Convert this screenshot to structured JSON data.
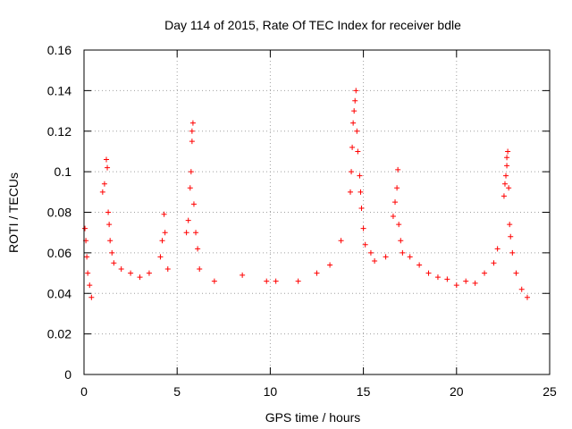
{
  "chart_data": {
    "type": "scatter",
    "title": "Day 114 of 2015, Rate Of TEC Index for receiver bdle",
    "xlabel": "GPS time / hours",
    "ylabel": "ROTI / TECUs",
    "xlim": [
      0,
      25
    ],
    "ylim": [
      0,
      0.16
    ],
    "xticks": [
      0,
      5,
      10,
      15,
      20,
      25
    ],
    "xtick_labels": [
      "0",
      "5",
      "10",
      "15",
      "20",
      "25"
    ],
    "yticks": [
      0,
      0.02,
      0.04,
      0.06,
      0.08,
      0.1,
      0.12,
      0.14,
      0.16
    ],
    "ytick_labels": [
      "0",
      "0.02",
      "0.04",
      "0.06",
      "0.08",
      "0.1",
      "0.12",
      "0.14",
      "0.16"
    ],
    "grid": true,
    "marker": "+",
    "color": "#ff0000",
    "series": [
      {
        "name": "ROTI",
        "points": [
          [
            0.05,
            0.072
          ],
          [
            0.1,
            0.066
          ],
          [
            0.15,
            0.058
          ],
          [
            0.2,
            0.05
          ],
          [
            0.3,
            0.044
          ],
          [
            0.4,
            0.038
          ],
          [
            1.2,
            0.106
          ],
          [
            1.25,
            0.102
          ],
          [
            1.1,
            0.094
          ],
          [
            1.0,
            0.09
          ],
          [
            1.3,
            0.08
          ],
          [
            1.35,
            0.074
          ],
          [
            1.4,
            0.066
          ],
          [
            1.5,
            0.06
          ],
          [
            1.6,
            0.055
          ],
          [
            2.0,
            0.052
          ],
          [
            2.5,
            0.05
          ],
          [
            3.0,
            0.048
          ],
          [
            3.5,
            0.05
          ],
          [
            4.1,
            0.058
          ],
          [
            4.2,
            0.066
          ],
          [
            4.3,
            0.079
          ],
          [
            4.35,
            0.07
          ],
          [
            4.5,
            0.052
          ],
          [
            5.5,
            0.07
          ],
          [
            5.6,
            0.076
          ],
          [
            5.7,
            0.092
          ],
          [
            5.75,
            0.1
          ],
          [
            5.8,
            0.115
          ],
          [
            5.8,
            0.12
          ],
          [
            5.85,
            0.124
          ],
          [
            5.9,
            0.084
          ],
          [
            6.0,
            0.07
          ],
          [
            6.1,
            0.062
          ],
          [
            6.2,
            0.052
          ],
          [
            7.0,
            0.046
          ],
          [
            8.5,
            0.049
          ],
          [
            9.8,
            0.046
          ],
          [
            10.3,
            0.046
          ],
          [
            11.5,
            0.046
          ],
          [
            12.5,
            0.05
          ],
          [
            13.2,
            0.054
          ],
          [
            13.8,
            0.066
          ],
          [
            14.3,
            0.09
          ],
          [
            14.35,
            0.1
          ],
          [
            14.4,
            0.112
          ],
          [
            14.45,
            0.124
          ],
          [
            14.5,
            0.13
          ],
          [
            14.55,
            0.135
          ],
          [
            14.6,
            0.14
          ],
          [
            14.65,
            0.12
          ],
          [
            14.7,
            0.11
          ],
          [
            14.8,
            0.098
          ],
          [
            14.85,
            0.09
          ],
          [
            14.9,
            0.082
          ],
          [
            15.0,
            0.072
          ],
          [
            15.1,
            0.064
          ],
          [
            15.4,
            0.06
          ],
          [
            15.6,
            0.056
          ],
          [
            16.2,
            0.058
          ],
          [
            16.6,
            0.078
          ],
          [
            16.7,
            0.085
          ],
          [
            16.8,
            0.092
          ],
          [
            16.85,
            0.101
          ],
          [
            16.9,
            0.074
          ],
          [
            17.0,
            0.066
          ],
          [
            17.1,
            0.06
          ],
          [
            17.5,
            0.058
          ],
          [
            18.0,
            0.054
          ],
          [
            18.5,
            0.05
          ],
          [
            19.0,
            0.048
          ],
          [
            19.5,
            0.047
          ],
          [
            20.0,
            0.044
          ],
          [
            20.5,
            0.046
          ],
          [
            21.0,
            0.045
          ],
          [
            21.5,
            0.05
          ],
          [
            22.0,
            0.055
          ],
          [
            22.2,
            0.062
          ],
          [
            22.55,
            0.088
          ],
          [
            22.6,
            0.094
          ],
          [
            22.65,
            0.098
          ],
          [
            22.7,
            0.103
          ],
          [
            22.75,
            0.11
          ],
          [
            22.7,
            0.107
          ],
          [
            22.8,
            0.092
          ],
          [
            22.85,
            0.074
          ],
          [
            22.9,
            0.068
          ],
          [
            23.0,
            0.06
          ],
          [
            23.2,
            0.05
          ],
          [
            23.5,
            0.042
          ],
          [
            23.8,
            0.038
          ]
        ]
      }
    ]
  }
}
